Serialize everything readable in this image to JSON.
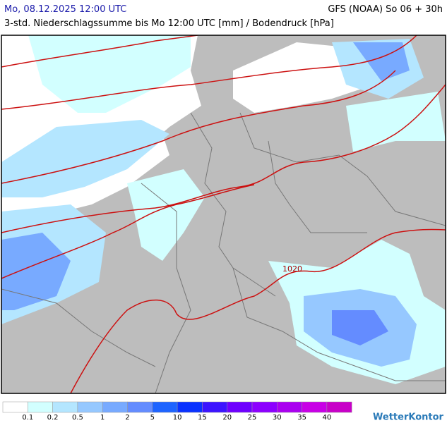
{
  "header": {
    "valid_time": "Mo, 08.12.2025 12:00 UTC",
    "model_run": "GFS (NOAA) So 06 + 30h",
    "subtitle": "3-std. Niederschlagssumme bis Mo 12:00 UTC [mm] / Bodendruck [hPa]"
  },
  "map": {
    "isobar_label": "1020"
  },
  "legend": {
    "colors": [
      "#ffffff",
      "#d2ffff",
      "#b4e6ff",
      "#96c8ff",
      "#78aaff",
      "#648cff",
      "#1e64ff",
      "#0a32ff",
      "#3c14ff",
      "#6e00ff",
      "#8c00ff",
      "#aa00f0",
      "#c800e6",
      "#c800c8"
    ],
    "labels": [
      "0.1",
      "0.2",
      "0.5",
      "1",
      "2",
      "5",
      "10",
      "15",
      "20",
      "25",
      "30",
      "35",
      "40"
    ]
  },
  "brand": "WetterKontor"
}
